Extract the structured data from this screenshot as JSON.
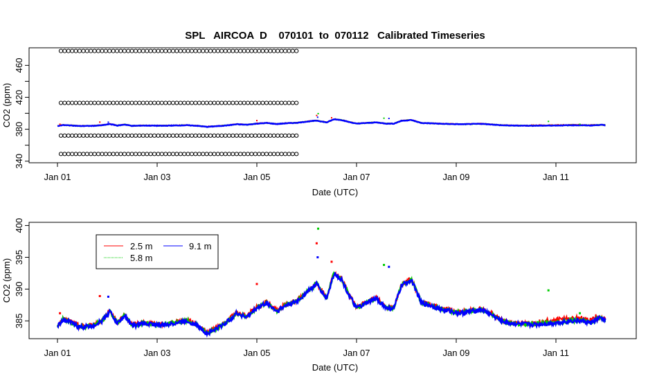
{
  "chart_data": [
    {
      "type": "scatter",
      "title": "SPL   AIRCOA  D    070101  to  070112   Calibrated Timeseries",
      "xlabel": "Date (UTC)",
      "ylabel": "CO2 (ppm)",
      "xlim": [
        0,
        11.2
      ],
      "ylim": [
        338,
        482
      ],
      "x_ticks": [
        0,
        2,
        4,
        6,
        8,
        10
      ],
      "x_tick_labels": [
        "Jan 01",
        "Jan 03",
        "Jan 05",
        "Jan 07",
        "Jan 09",
        "Jan 11"
      ],
      "y_ticks": [
        340,
        380,
        420,
        460
      ],
      "y_minor_ticks": [
        360,
        400,
        440
      ],
      "y_tick_labels": [
        "340",
        "380",
        "420",
        "460"
      ],
      "series": [
        {
          "name": "calibration standards",
          "color": "#000000",
          "marker": "open-circle",
          "x_start": 0.07,
          "x_end": 4.85,
          "levels": [
            349,
            372,
            413,
            478
          ]
        },
        {
          "name": "2.5 m",
          "color": "#ff0000"
        },
        {
          "name": "5.8 m",
          "color": "#00cc00"
        },
        {
          "name": "9.1 m",
          "color": "#0000ff"
        }
      ]
    },
    {
      "type": "scatter",
      "xlabel": "Date (UTC)",
      "ylabel": "CO2 (ppm)",
      "xlim": [
        0,
        11.2
      ],
      "ylim": [
        382.2,
        400.5
      ],
      "x_ticks": [
        0,
        2,
        4,
        6,
        8,
        10
      ],
      "x_tick_labels": [
        "Jan 01",
        "Jan 03",
        "Jan 05",
        "Jan 07",
        "Jan 09",
        "Jan 11"
      ],
      "y_ticks": [
        385,
        390,
        395,
        400
      ],
      "y_tick_labels": [
        "385",
        "390",
        "395",
        "400"
      ],
      "legend": {
        "position": "top-left",
        "entries": [
          {
            "label": "2.5 m",
            "color": "#ff0000"
          },
          {
            "label": "9.1 m",
            "color": "#0000ff"
          },
          {
            "label": "5.8 m",
            "color": "#00cc00"
          }
        ]
      },
      "baseline": {
        "x": [
          0,
          0.1,
          0.25,
          0.45,
          0.7,
          0.9,
          1.05,
          1.2,
          1.35,
          1.5,
          1.7,
          1.9,
          2.1,
          2.3,
          2.6,
          2.8,
          3.0,
          3.2,
          3.4,
          3.6,
          3.8,
          4.0,
          4.2,
          4.4,
          4.6,
          4.8,
          5.0,
          5.2,
          5.4,
          5.55,
          5.7,
          5.85,
          6.0,
          6.2,
          6.4,
          6.6,
          6.75,
          6.9,
          7.1,
          7.3,
          7.5,
          7.7,
          7.9,
          8.1,
          8.3,
          8.5,
          8.7,
          8.9,
          9.1,
          9.3,
          9.5,
          9.7,
          9.9,
          10.1,
          10.3,
          10.5,
          10.7,
          10.9,
          11.0
        ],
        "y": [
          384.0,
          385.2,
          384.8,
          384.0,
          384.2,
          385.0,
          386.5,
          384.6,
          385.8,
          384.2,
          384.6,
          384.5,
          384.3,
          384.6,
          385.0,
          384.3,
          383.0,
          383.8,
          384.8,
          386.2,
          385.6,
          387.0,
          387.8,
          386.5,
          387.5,
          388.0,
          389.5,
          390.8,
          388.5,
          392.5,
          391.5,
          389.0,
          387.0,
          387.8,
          388.5,
          387.0,
          387.0,
          390.5,
          391.5,
          387.8,
          387.4,
          386.8,
          386.5,
          386.2,
          386.5,
          386.8,
          386.0,
          385.0,
          384.6,
          384.5,
          384.4,
          384.5,
          384.6,
          384.8,
          385.0,
          385.0,
          384.7,
          385.5,
          385.0
        ]
      },
      "spikes": [
        {
          "x": 0.05,
          "y": 386.2,
          "series": "2.5 m"
        },
        {
          "x": 0.85,
          "y": 388.9,
          "series": "2.5 m"
        },
        {
          "x": 1.02,
          "y": 388.8,
          "series": "9.1 m"
        },
        {
          "x": 4.0,
          "y": 390.8,
          "series": "2.5 m"
        },
        {
          "x": 5.23,
          "y": 399.5,
          "series": "5.8 m"
        },
        {
          "x": 5.2,
          "y": 397.2,
          "series": "2.5 m"
        },
        {
          "x": 5.22,
          "y": 395.0,
          "series": "9.1 m"
        },
        {
          "x": 5.5,
          "y": 394.3,
          "series": "2.5 m"
        },
        {
          "x": 6.55,
          "y": 393.8,
          "series": "5.8 m"
        },
        {
          "x": 6.65,
          "y": 393.5,
          "series": "9.1 m"
        },
        {
          "x": 9.85,
          "y": 389.8,
          "series": "5.8 m"
        },
        {
          "x": 10.48,
          "y": 386.2,
          "series": "5.8 m"
        }
      ]
    }
  ]
}
